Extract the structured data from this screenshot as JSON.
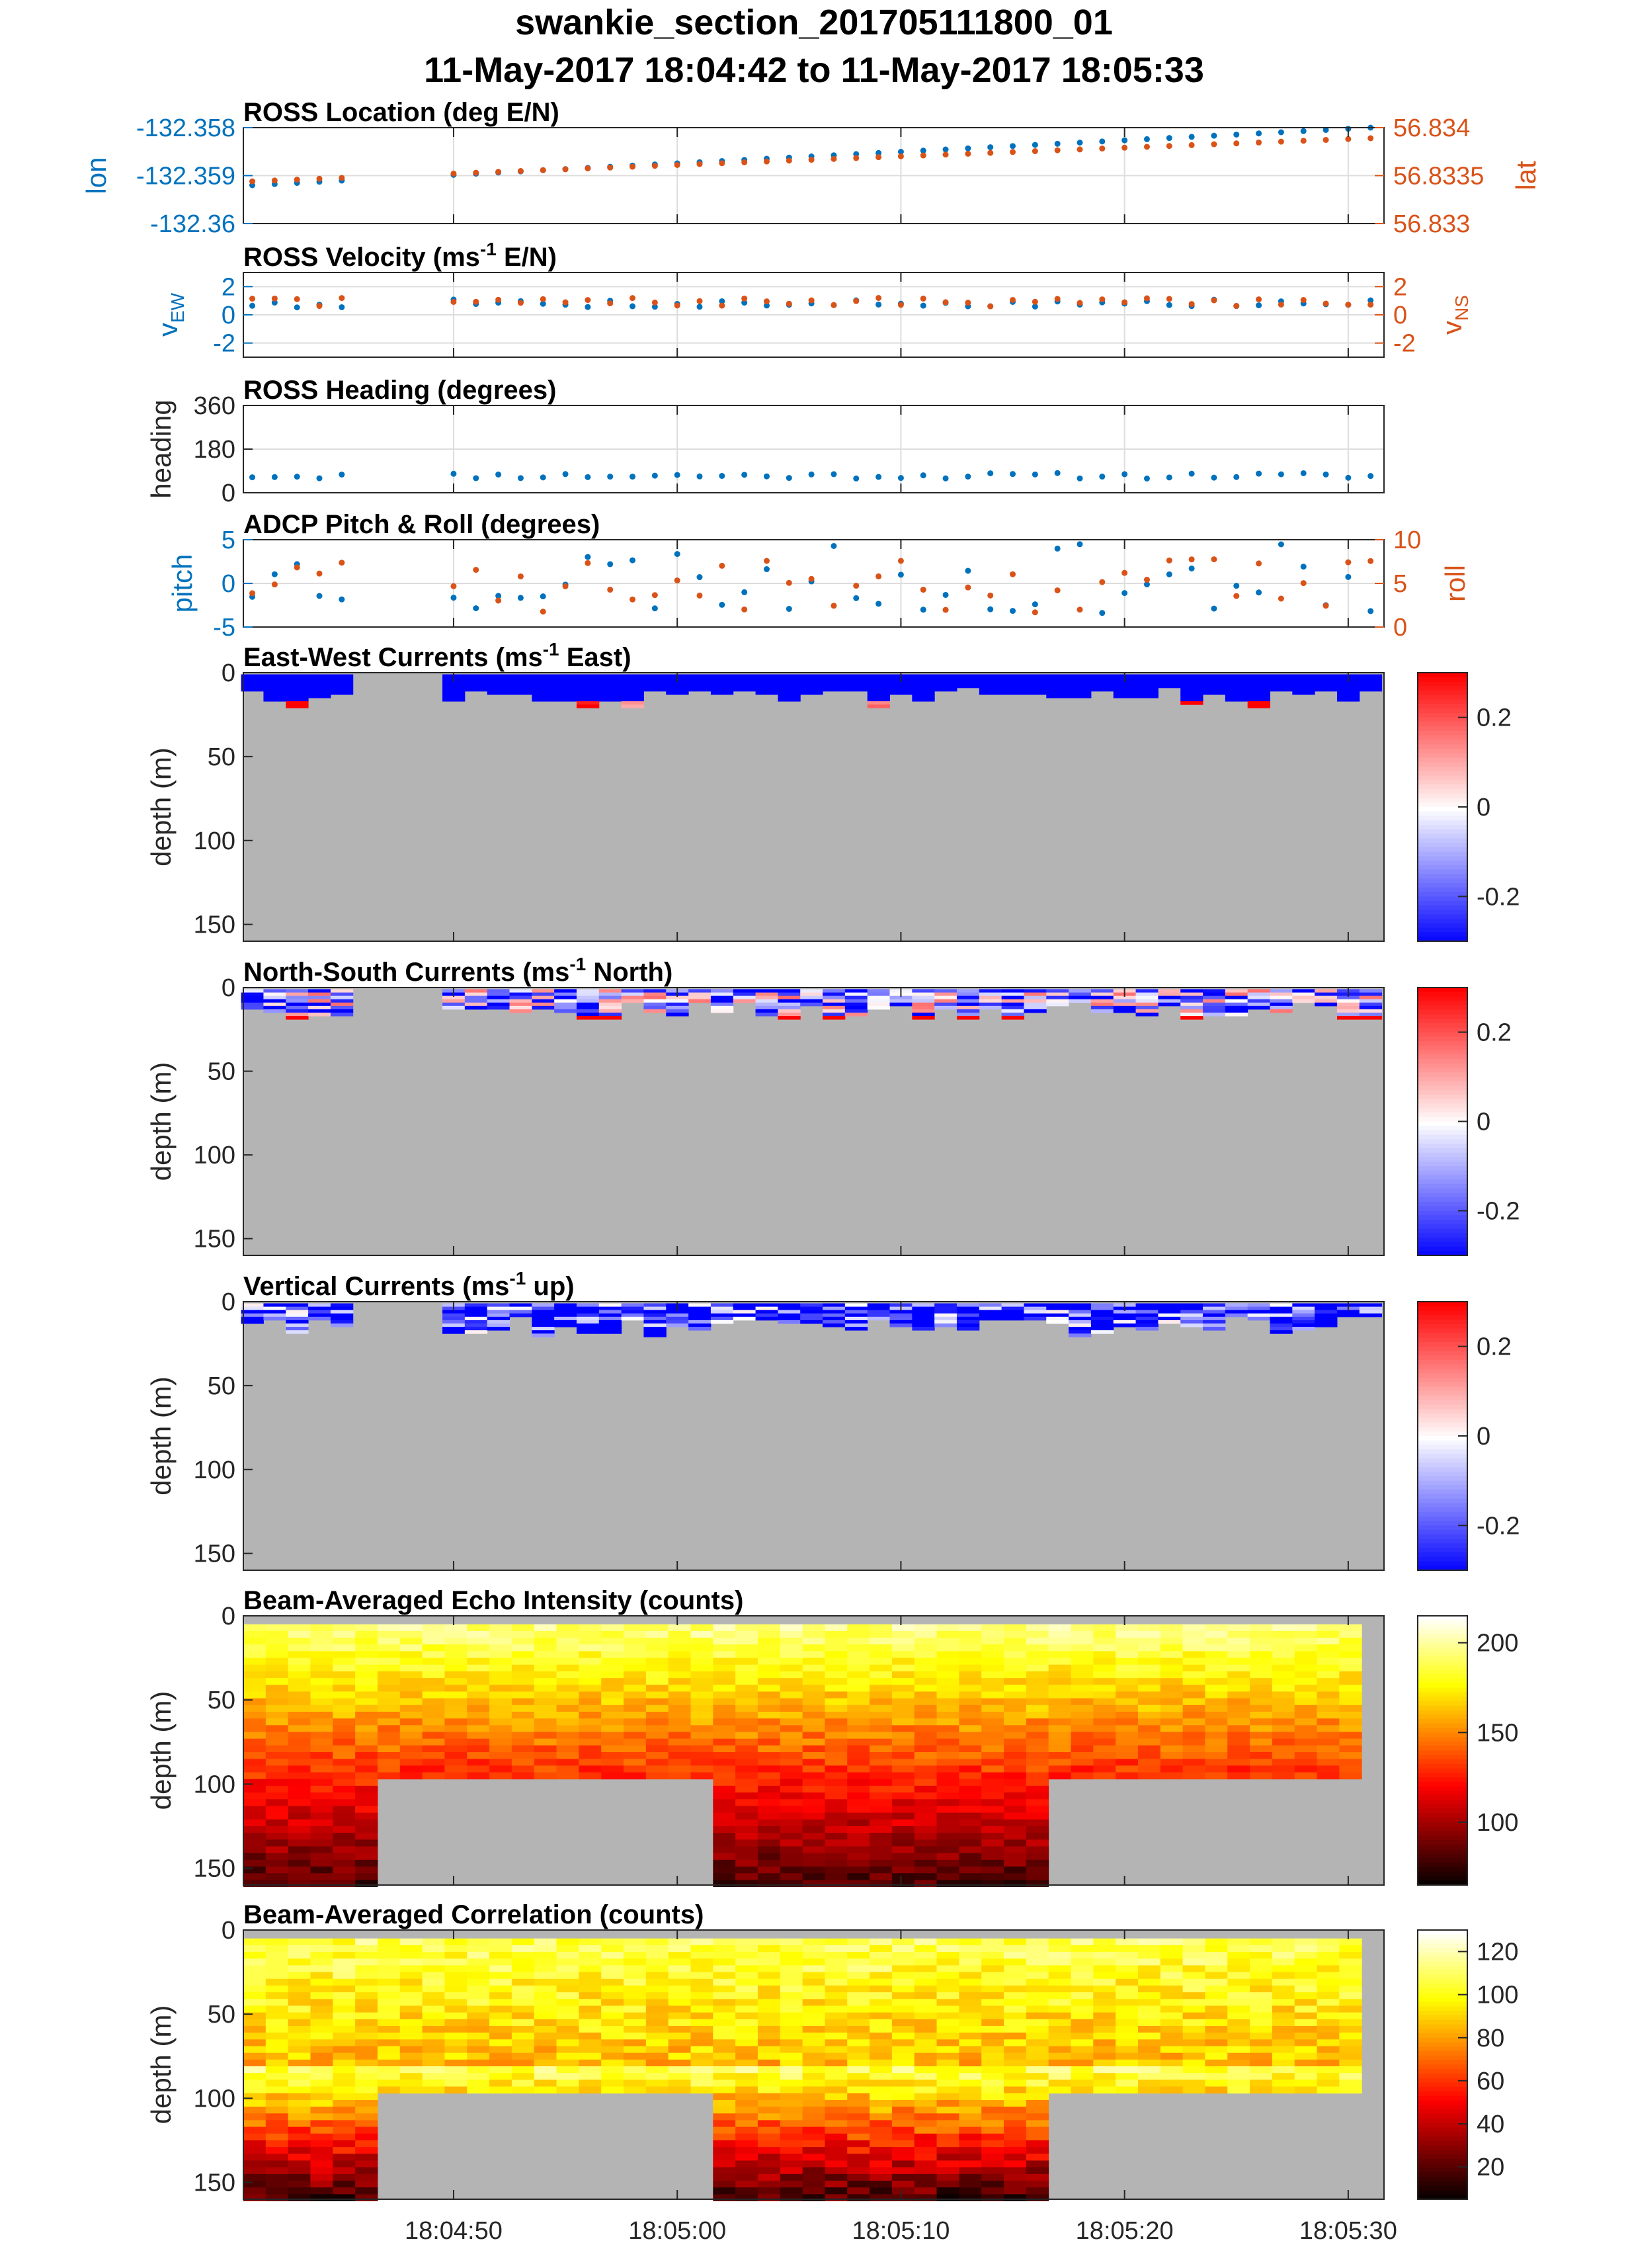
{
  "figure": {
    "title_line1": "swankie_section_201705111800_01",
    "title_line2": "11-May-2017 18:04:42 to 11-May-2017 18:05:33"
  },
  "colors": {
    "left_axis": "#0072BD",
    "right_axis": "#D95319",
    "nodata_gray": "#B4B4B4",
    "grid": "#DDDDDD"
  },
  "time_axis": {
    "tick_labels": [
      "18:04:50",
      "18:05:00",
      "18:05:10",
      "18:05:20",
      "18:05:30"
    ]
  },
  "chart_data": [
    {
      "id": "location",
      "type": "scatter",
      "title": "ROSS Location (deg E/N)",
      "ylabel_left": "lon",
      "ylabel_right": "lat",
      "ylim_left": [
        -132.36,
        -132.358
      ],
      "yticks_left": [
        "-132.358",
        "-132.359",
        "-132.36"
      ],
      "ylim_right": [
        56.833,
        56.834
      ],
      "yticks_right": [
        "56.834",
        "56.8335",
        "56.833"
      ],
      "grid": true,
      "series": [
        {
          "axis": "left",
          "pattern": "lon_rising"
        },
        {
          "axis": "right",
          "pattern": "lat_rising"
        }
      ]
    },
    {
      "id": "velocity",
      "type": "scatter",
      "title": "ROSS Velocity (ms",
      "title_sup": "-1",
      "title_tail": " E/N)",
      "ylabel_left": "v",
      "ylabel_left_sub": "EW",
      "ylabel_right": "v",
      "ylabel_right_sub": "NS",
      "ylim_left": [
        -3,
        3
      ],
      "yticks_left": [
        "2",
        "0",
        "-2"
      ],
      "ylim_right": [
        -3,
        3
      ],
      "yticks_right": [
        "2",
        "0",
        "-2"
      ],
      "grid": true,
      "approx_values": {
        "v_ew": 0.8,
        "v_ns": 0.9
      }
    },
    {
      "id": "heading",
      "type": "scatter",
      "title": "ROSS Heading (degrees)",
      "ylabel_left": "heading",
      "ylim_left": [
        0,
        360
      ],
      "yticks_left": [
        "360",
        "180",
        "0"
      ],
      "grid": true,
      "approx_values": {
        "heading": 70
      }
    },
    {
      "id": "pitchroll",
      "type": "scatter",
      "title": "ADCP Pitch & Roll (degrees)",
      "ylabel_left": "pitch",
      "ylabel_right": "roll",
      "ylim_left": [
        -5,
        5
      ],
      "yticks_left": [
        "5",
        "0",
        "-5"
      ],
      "ylim_right": [
        0,
        10
      ],
      "yticks_right": [
        "10",
        "5",
        "0"
      ],
      "grid": true
    },
    {
      "id": "ew",
      "type": "heatmap",
      "title": "East-West Currents (ms",
      "title_sup": "-1",
      "title_tail": " East)",
      "ylabel": "depth (m)",
      "ylim": [
        0,
        160
      ],
      "yticks": [
        "0",
        "50",
        "100",
        "150"
      ],
      "colormap": "blue-white-red",
      "clim": [
        -0.3,
        0.3
      ],
      "cbar_ticks": [
        "0.2",
        "0",
        "-0.2"
      ],
      "profile_depth_m": 20
    },
    {
      "id": "ns",
      "type": "heatmap",
      "title": "North-South Currents (ms",
      "title_sup": "-1",
      "title_tail": " North)",
      "ylabel": "depth (m)",
      "ylim": [
        0,
        160
      ],
      "yticks": [
        "0",
        "50",
        "100",
        "150"
      ],
      "colormap": "blue-white-red",
      "clim": [
        -0.3,
        0.3
      ],
      "cbar_ticks": [
        "0.2",
        "0",
        "-0.2"
      ],
      "profile_depth_m": 20
    },
    {
      "id": "vert",
      "type": "heatmap",
      "title": "Vertical Currents (ms",
      "title_sup": "-1",
      "title_tail": " up)",
      "ylabel": "depth (m)",
      "ylim": [
        0,
        160
      ],
      "yticks": [
        "0",
        "50",
        "100",
        "150"
      ],
      "colormap": "blue-white-red",
      "clim": [
        -0.3,
        0.3
      ],
      "cbar_ticks": [
        "0.2",
        "0",
        "-0.2"
      ],
      "profile_depth_m": 20
    },
    {
      "id": "echo",
      "type": "heatmap",
      "title": "Beam-Averaged Echo Intensity (counts)",
      "ylabel": "depth (m)",
      "ylim": [
        0,
        160
      ],
      "yticks": [
        "0",
        "50",
        "100",
        "150"
      ],
      "colormap": "hot",
      "clim": [
        65,
        215
      ],
      "cbar_ticks": [
        "200",
        "150",
        "100"
      ]
    },
    {
      "id": "corr",
      "type": "heatmap",
      "title": "Beam-Averaged Correlation (counts)",
      "ylabel": "depth (m)",
      "ylim": [
        0,
        160
      ],
      "yticks": [
        "0",
        "50",
        "100",
        "150"
      ],
      "colormap": "hot",
      "clim": [
        5,
        130
      ],
      "cbar_ticks": [
        "120",
        "100",
        "80",
        "60",
        "40",
        "20"
      ]
    }
  ]
}
